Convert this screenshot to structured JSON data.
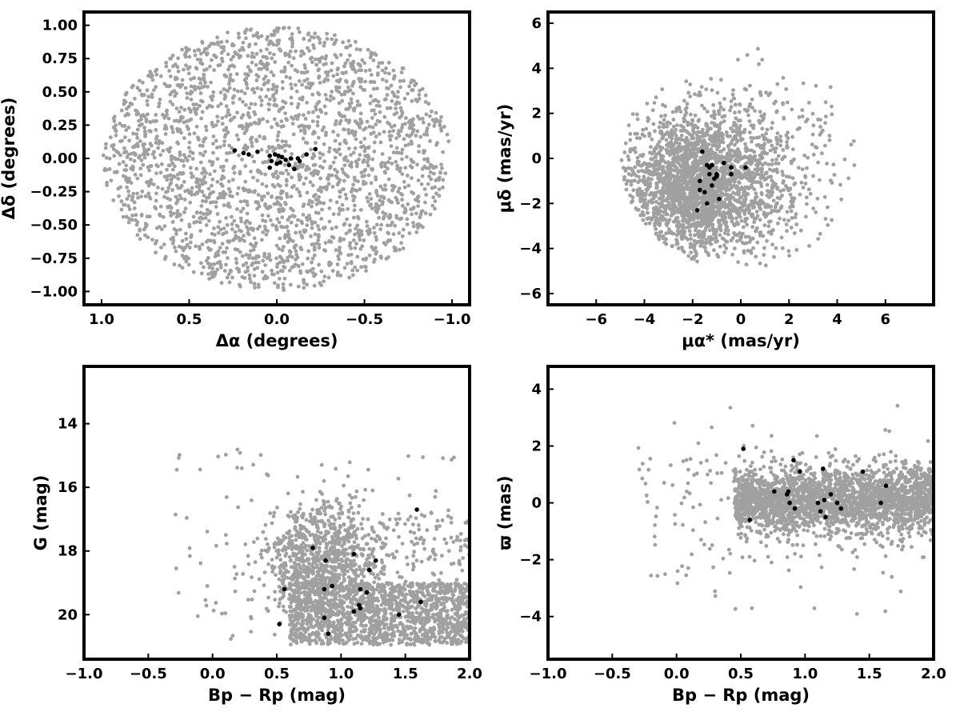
{
  "chart_data": [
    {
      "type": "scatter",
      "panel": "top-left",
      "xlabel": "Δα (degrees)",
      "ylabel": "Δδ (degrees)",
      "xlim": [
        1.1,
        -1.1
      ],
      "ylim": [
        -1.1,
        1.1
      ],
      "x_inverted": true,
      "xticks": [
        1.0,
        0.5,
        0.0,
        -0.5,
        -1.0
      ],
      "xtick_labels": [
        "1.0",
        "0.5",
        "0.0",
        "−0.5",
        "−1.0"
      ],
      "yticks": [
        1.0,
        0.75,
        0.5,
        0.25,
        0.0,
        -0.25,
        -0.5,
        -0.75,
        -1.0
      ],
      "ytick_labels": [
        "1.00",
        "0.75",
        "0.50",
        "0.25",
        "0.00",
        "−0.25",
        "−0.50",
        "−0.75",
        "−1.00"
      ],
      "grid": false,
      "background_points": {
        "color": "#a0a0a0",
        "count": 2400,
        "distribution": "uniform disk",
        "center": [
          0.0,
          0.0
        ],
        "radius": 1.0
      },
      "series": [
        {
          "color": "#000000",
          "points": [
            [
              0.24,
              0.06
            ],
            [
              0.19,
              0.04
            ],
            [
              0.16,
              0.03
            ],
            [
              0.11,
              0.05
            ],
            [
              0.04,
              0.02
            ],
            [
              0.01,
              0.03
            ],
            [
              -0.01,
              0.02
            ],
            [
              -0.03,
              0.01
            ],
            [
              0.03,
              -0.02
            ],
            [
              0.04,
              -0.07
            ],
            [
              -0.02,
              -0.03
            ],
            [
              -0.05,
              -0.01
            ],
            [
              -0.08,
              0.0
            ],
            [
              -0.07,
              -0.05
            ],
            [
              -0.1,
              -0.08
            ],
            [
              -0.12,
              0.0
            ],
            [
              -0.13,
              -0.02
            ],
            [
              -0.17,
              0.03
            ],
            [
              -0.22,
              0.07
            ],
            [
              0.0,
              -0.04
            ]
          ]
        }
      ]
    },
    {
      "type": "scatter",
      "panel": "top-right",
      "xlabel": "μα* (mas/yr)",
      "ylabel": "μδ (mas/yr)",
      "xlim": [
        -8,
        8
      ],
      "ylim": [
        -6.5,
        6.5
      ],
      "xticks": [
        -6,
        -4,
        -2,
        0,
        2,
        4,
        6
      ],
      "xtick_labels": [
        "−6",
        "−4",
        "−2",
        "0",
        "2",
        "4",
        "6"
      ],
      "yticks": [
        -6,
        -4,
        -2,
        0,
        2,
        4,
        6
      ],
      "ytick_labels": [
        "−6",
        "−4",
        "−2",
        "0",
        "2",
        "4",
        "6"
      ],
      "grid": false,
      "background_points": {
        "color": "#a0a0a0",
        "count": 2600,
        "distribution": "dense cloud within radius 5 of (0,0), concentrated near (-2,-1)"
      },
      "series": [
        {
          "color": "#000000",
          "points": [
            [
              -1.6,
              0.3
            ],
            [
              -1.4,
              -0.3
            ],
            [
              -1.3,
              -0.4
            ],
            [
              -1.2,
              -0.3
            ],
            [
              -1.3,
              -0.7
            ],
            [
              -1.0,
              -0.7
            ],
            [
              -1.0,
              -0.8
            ],
            [
              -1.7,
              -1.0
            ],
            [
              -1.2,
              -1.2
            ],
            [
              -1.7,
              -1.4
            ],
            [
              -1.5,
              -1.5
            ],
            [
              -0.9,
              -1.8
            ],
            [
              -1.4,
              -2.0
            ],
            [
              -1.8,
              -2.3
            ],
            [
              -0.7,
              -0.2
            ],
            [
              -0.4,
              -0.4
            ],
            [
              -0.4,
              -0.7
            ],
            [
              0.2,
              -0.4
            ],
            [
              -1.1,
              -0.9
            ]
          ]
        }
      ]
    },
    {
      "type": "scatter",
      "panel": "bottom-left",
      "xlabel": "Bp − Rp (mag)",
      "ylabel": "G (mag)",
      "xlim": [
        -1.0,
        2.0
      ],
      "ylim": [
        21.4,
        12.2
      ],
      "y_inverted": true,
      "xticks": [
        -1.0,
        -0.5,
        0.0,
        0.5,
        1.0,
        1.5,
        2.0
      ],
      "xtick_labels": [
        "−1.0",
        "−0.5",
        "0.0",
        "0.5",
        "1.0",
        "1.5",
        "2.0"
      ],
      "yticks": [
        20,
        18,
        16,
        14
      ],
      "ytick_labels": [
        "20",
        "18",
        "16",
        "14"
      ],
      "grid": false,
      "background_points": {
        "color": "#a0a0a0",
        "count": 2600,
        "distribution": "dense band 0.5 to 2.0 in color, G 17 to 21, with sparse outliers"
      },
      "series": [
        {
          "color": "#000000",
          "points": [
            [
              0.52,
              20.3
            ],
            [
              0.56,
              19.2
            ],
            [
              0.87,
              20.1
            ],
            [
              0.87,
              19.2
            ],
            [
              0.88,
              18.3
            ],
            [
              0.9,
              20.6
            ],
            [
              0.93,
              19.1
            ],
            [
              0.78,
              17.9
            ],
            [
              1.1,
              19.9
            ],
            [
              1.14,
              19.7
            ],
            [
              1.15,
              19.8
            ],
            [
              1.15,
              19.2
            ],
            [
              1.2,
              19.3
            ],
            [
              1.1,
              18.1
            ],
            [
              1.22,
              18.6
            ],
            [
              1.27,
              18.3
            ],
            [
              1.45,
              20.0
            ],
            [
              1.62,
              19.6
            ],
            [
              1.59,
              16.7
            ]
          ]
        }
      ]
    },
    {
      "type": "scatter",
      "panel": "bottom-right",
      "xlabel": "Bp − Rp (mag)",
      "ylabel": "ϖ (mas)",
      "xlim": [
        -1.0,
        2.0
      ],
      "ylim": [
        -5.5,
        4.8
      ],
      "xticks": [
        -1.0,
        -0.5,
        0.0,
        0.5,
        1.0,
        1.5,
        2.0
      ],
      "xtick_labels": [
        "−1.0",
        "−0.5",
        "0.0",
        "0.5",
        "1.0",
        "1.5",
        "2.0"
      ],
      "yticks": [
        -4,
        -2,
        0,
        2,
        4
      ],
      "ytick_labels": [
        "−4",
        "−2",
        "0",
        "2",
        "4"
      ],
      "grid": false,
      "background_points": {
        "color": "#a0a0a0",
        "count": 2600,
        "distribution": "band around 0 for color 0.4 to 2.0 with sparse outliers"
      },
      "series": [
        {
          "color": "#000000",
          "points": [
            [
              0.52,
              1.9
            ],
            [
              0.57,
              -0.6
            ],
            [
              0.76,
              0.4
            ],
            [
              0.86,
              0.3
            ],
            [
              0.87,
              0.4
            ],
            [
              0.88,
              0.0
            ],
            [
              0.91,
              1.5
            ],
            [
              0.92,
              -0.2
            ],
            [
              0.96,
              1.1
            ],
            [
              1.1,
              0.0
            ],
            [
              1.12,
              -0.3
            ],
            [
              1.14,
              1.2
            ],
            [
              1.15,
              0.1
            ],
            [
              1.16,
              -0.5
            ],
            [
              1.2,
              0.3
            ],
            [
              1.25,
              0.0
            ],
            [
              1.28,
              -0.2
            ],
            [
              1.45,
              1.1
            ],
            [
              1.59,
              0.0
            ],
            [
              1.63,
              0.6
            ]
          ]
        }
      ]
    }
  ]
}
